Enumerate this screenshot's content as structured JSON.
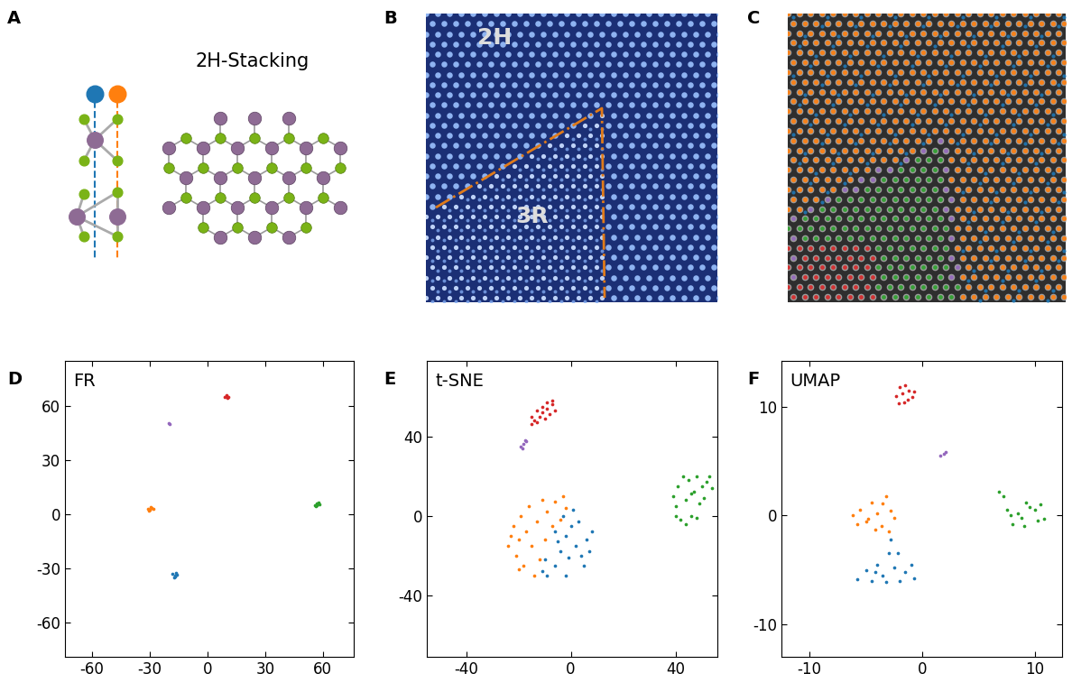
{
  "panel_labels": [
    "A",
    "B",
    "C",
    "D",
    "E",
    "F"
  ],
  "schematic": {
    "title": "2H-Stacking"
  },
  "micrograph": {
    "region_labels": [
      "2H",
      "3R"
    ]
  },
  "chart_data": [
    {
      "type": "scatter",
      "title": "FR",
      "xlim": [
        -74,
        76
      ],
      "ylim": [
        -79,
        85
      ],
      "xticks": [
        -60,
        -30,
        0,
        30,
        60
      ],
      "yticks": [
        -60,
        -30,
        0,
        30,
        60
      ],
      "series": [
        {
          "color": "#1f77b4",
          "x": [
            -18,
            -17,
            -16,
            -17.5,
            -16.5,
            -17
          ],
          "values": [
            -33,
            -34,
            -33.5,
            -35,
            -32.5,
            -34.5
          ]
        },
        {
          "color": "#ff7f0e",
          "x": [
            -31,
            -30,
            -29,
            -28,
            -30.5,
            -29.5
          ],
          "values": [
            3,
            2.5,
            3.5,
            3,
            2,
            3.8
          ]
        },
        {
          "color": "#2ca02c",
          "x": [
            56,
            57,
            58,
            56.5,
            57.5,
            57
          ],
          "values": [
            5,
            6,
            5.5,
            4.5,
            6.5,
            5
          ]
        },
        {
          "color": "#d62728",
          "x": [
            9,
            10,
            10.5,
            11,
            10
          ],
          "values": [
            65,
            65.5,
            64.5,
            65,
            66
          ]
        },
        {
          "color": "#9467bd",
          "x": [
            -20,
            -19.5
          ],
          "values": [
            50.5,
            50
          ]
        }
      ]
    },
    {
      "type": "scatter",
      "title": "t-SNE",
      "xlim": [
        -55,
        56
      ],
      "ylim": [
        -71,
        78
      ],
      "xticks": [
        -40,
        0,
        40
      ],
      "yticks": [
        -40,
        0,
        40
      ],
      "series": [
        {
          "color": "#1f77b4",
          "x": [
            -9,
            -6,
            -4,
            -2,
            0,
            2,
            4,
            -5,
            -10,
            -3,
            1,
            6,
            -2,
            -11,
            3,
            -1,
            8,
            -6,
            5,
            7
          ],
          "values": [
            -30,
            -25,
            -18,
            -10,
            -5,
            -15,
            -20,
            -13,
            -22,
            0,
            3,
            -12,
            -30,
            -28,
            -3,
            -21,
            -8,
            -8,
            -25,
            -18
          ]
        },
        {
          "color": "#ff7f0e",
          "x": [
            -23,
            -22,
            -21,
            -20,
            -19,
            -18,
            -17,
            -16,
            -15,
            -13,
            -12,
            -11,
            -10,
            -9,
            -7,
            -6,
            -4,
            -3,
            -24,
            -20,
            -14,
            -2
          ],
          "values": [
            -10,
            -5,
            -20,
            -12,
            0,
            -25,
            -8,
            5,
            -15,
            -3,
            -22,
            8,
            -12,
            2,
            -5,
            7,
            -2,
            10,
            -15,
            -27,
            -30,
            4
          ]
        },
        {
          "color": "#2ca02c",
          "x": [
            39,
            40,
            41,
            42,
            44,
            45,
            46,
            47,
            48,
            49,
            50,
            52,
            44,
            40,
            43,
            48,
            54,
            46,
            51,
            53
          ],
          "values": [
            10,
            5,
            15,
            -2,
            8,
            18,
            0,
            12,
            20,
            6,
            15,
            17,
            -4,
            0,
            20,
            -1,
            14,
            11,
            9,
            20
          ]
        },
        {
          "color": "#d62728",
          "x": [
            -15,
            -13,
            -11,
            -9,
            -7,
            -6,
            -8,
            -10,
            -13,
            -15,
            -11,
            -9,
            -7,
            -12,
            -14
          ],
          "values": [
            50,
            53,
            55,
            57,
            56,
            53,
            51,
            49,
            47,
            46,
            52,
            54,
            58,
            50,
            48
          ]
        },
        {
          "color": "#9467bd",
          "x": [
            -19,
            -18,
            -17,
            -18.5,
            -17.5
          ],
          "values": [
            35,
            36,
            37.5,
            34,
            38
          ]
        }
      ]
    },
    {
      "type": "scatter",
      "title": "UMAP",
      "xlim": [
        -12.5,
        12.4
      ],
      "ylim": [
        -13,
        14.2
      ],
      "xticks": [
        -10,
        0,
        10
      ],
      "yticks": [
        -10,
        0,
        10
      ],
      "series": [
        {
          "color": "#1f77b4",
          "x": [
            -5.8,
            -5,
            -4.5,
            -4,
            -3.5,
            -3,
            -2.8,
            -2.5,
            -2,
            -1.5,
            -1,
            -0.7,
            -3.2,
            -4.2,
            -2.2
          ],
          "values": [
            -5.9,
            -5,
            -6,
            -4.5,
            -5.5,
            -3.5,
            -2.2,
            -4.8,
            -6,
            -5.2,
            -4.5,
            -5.8,
            -6.1,
            -5.2,
            -3.5
          ]
        },
        {
          "color": "#ff7f0e",
          "x": [
            -6.2,
            -5.5,
            -5,
            -4.5,
            -4,
            -3.6,
            -3.2,
            -2.8,
            -3,
            -4.8,
            -5.8,
            -3.5,
            -2.5,
            -4.2
          ],
          "values": [
            0,
            0.5,
            -0.6,
            1.2,
            0.2,
            -1,
            1.8,
            0.4,
            -1.5,
            -0.3,
            -0.8,
            1.1,
            -0.2,
            -1.3
          ]
        },
        {
          "color": "#2ca02c",
          "x": [
            6.8,
            7.2,
            7.5,
            8,
            8.5,
            9,
            9.5,
            10,
            10.5,
            10.8,
            9.2,
            8.8,
            7.8,
            10.2
          ],
          "values": [
            2.2,
            1.8,
            0.5,
            -0.8,
            0.2,
            -1,
            0.8,
            0.5,
            1,
            -0.3,
            1.2,
            -0.2,
            0,
            -0.5
          ]
        },
        {
          "color": "#d62728",
          "x": [
            -2.3,
            -2,
            -1.6,
            -1.2,
            -0.9,
            -1.5,
            -2.1,
            -0.7,
            -1.8,
            -1.3
          ],
          "values": [
            11,
            11.8,
            10.4,
            11.5,
            10.9,
            12,
            10.3,
            11.4,
            11.2,
            10.6
          ]
        },
        {
          "color": "#9467bd",
          "x": [
            1.6,
            1.9,
            2.1
          ],
          "values": [
            5.5,
            5.7,
            5.8
          ]
        }
      ]
    }
  ]
}
